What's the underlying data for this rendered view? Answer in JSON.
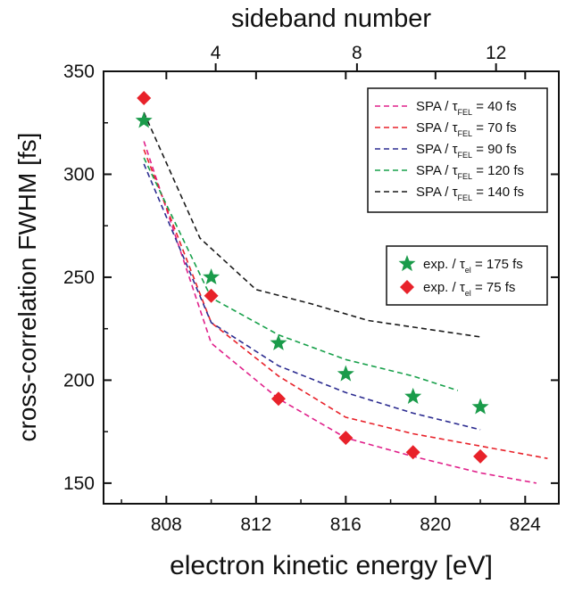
{
  "chart_data": {
    "type": "line",
    "xlabel": "electron kinetic energy [eV]",
    "ylabel": "cross-correlation FWHM [fs]",
    "x2label": "sideband number",
    "xlim": [
      805.2,
      825.5
    ],
    "ylim": [
      140,
      350
    ],
    "xticks": [
      808,
      812,
      816,
      820,
      824
    ],
    "yticks": [
      150,
      200,
      250,
      300,
      350
    ],
    "x2ticks": [
      {
        "label": "4",
        "x": 810.2
      },
      {
        "label": "8",
        "x": 816.5
      },
      {
        "label": "12",
        "x": 822.7
      }
    ],
    "series": [
      {
        "name_prefix": "SPA / ",
        "name_symbol": "τ",
        "name_sub": "FEL",
        "name_suffix": " = 40 fs",
        "color": "#e0208a",
        "style": "dashed",
        "x": [
          807,
          810,
          813,
          816,
          819,
          822,
          824.5
        ],
        "y": [
          316,
          218,
          191,
          172,
          163,
          155,
          150
        ]
      },
      {
        "name_prefix": "SPA / ",
        "name_symbol": "τ",
        "name_sub": "FEL",
        "name_suffix": " = 70 fs",
        "color": "#e8222a",
        "style": "dashed",
        "x": [
          807,
          810,
          813,
          816,
          819,
          822,
          825
        ],
        "y": [
          312,
          228,
          202,
          182,
          174,
          168,
          162
        ]
      },
      {
        "name_prefix": "SPA / ",
        "name_symbol": "τ",
        "name_sub": "FEL",
        "name_suffix": " = 90 fs",
        "color": "#2c2c90",
        "style": "dashed",
        "x": [
          807,
          810,
          813,
          816,
          819,
          822
        ],
        "y": [
          305,
          228,
          207,
          194,
          184,
          176
        ]
      },
      {
        "name_prefix": "SPA / ",
        "name_symbol": "τ",
        "name_sub": "FEL",
        "name_suffix": " = 120 fs",
        "color": "#17a04a",
        "style": "dashed",
        "x": [
          807,
          810,
          813,
          816,
          819,
          821
        ],
        "y": [
          308,
          240,
          222,
          210,
          202,
          195
        ]
      },
      {
        "name_prefix": "SPA / ",
        "name_symbol": "τ",
        "name_sub": "FEL",
        "name_suffix": " = 140 fs",
        "color": "#1a1a1a",
        "style": "dashed",
        "x": [
          807,
          809.5,
          812,
          814.5,
          817,
          819.5,
          822
        ],
        "y": [
          330,
          269,
          244,
          237,
          229,
          225,
          221
        ]
      }
    ],
    "points": [
      {
        "name_prefix": "exp. / ",
        "name_symbol": "τ",
        "name_sub": "el",
        "name_suffix": " = 175 fs",
        "marker": "star",
        "color": "#1a9b4a",
        "x": [
          807,
          810,
          813,
          816,
          819,
          822
        ],
        "y": [
          326,
          250,
          218,
          203,
          192,
          187
        ]
      },
      {
        "name_prefix": "exp. / ",
        "name_symbol": "τ",
        "name_sub": "el",
        "name_suffix": " = 75 fs",
        "marker": "diamond",
        "color": "#e8222a",
        "x": [
          807,
          810,
          813,
          816,
          819,
          822
        ],
        "y": [
          337,
          241,
          191,
          172,
          165,
          163
        ]
      }
    ],
    "legend_placement": "top-right",
    "grid": false
  }
}
